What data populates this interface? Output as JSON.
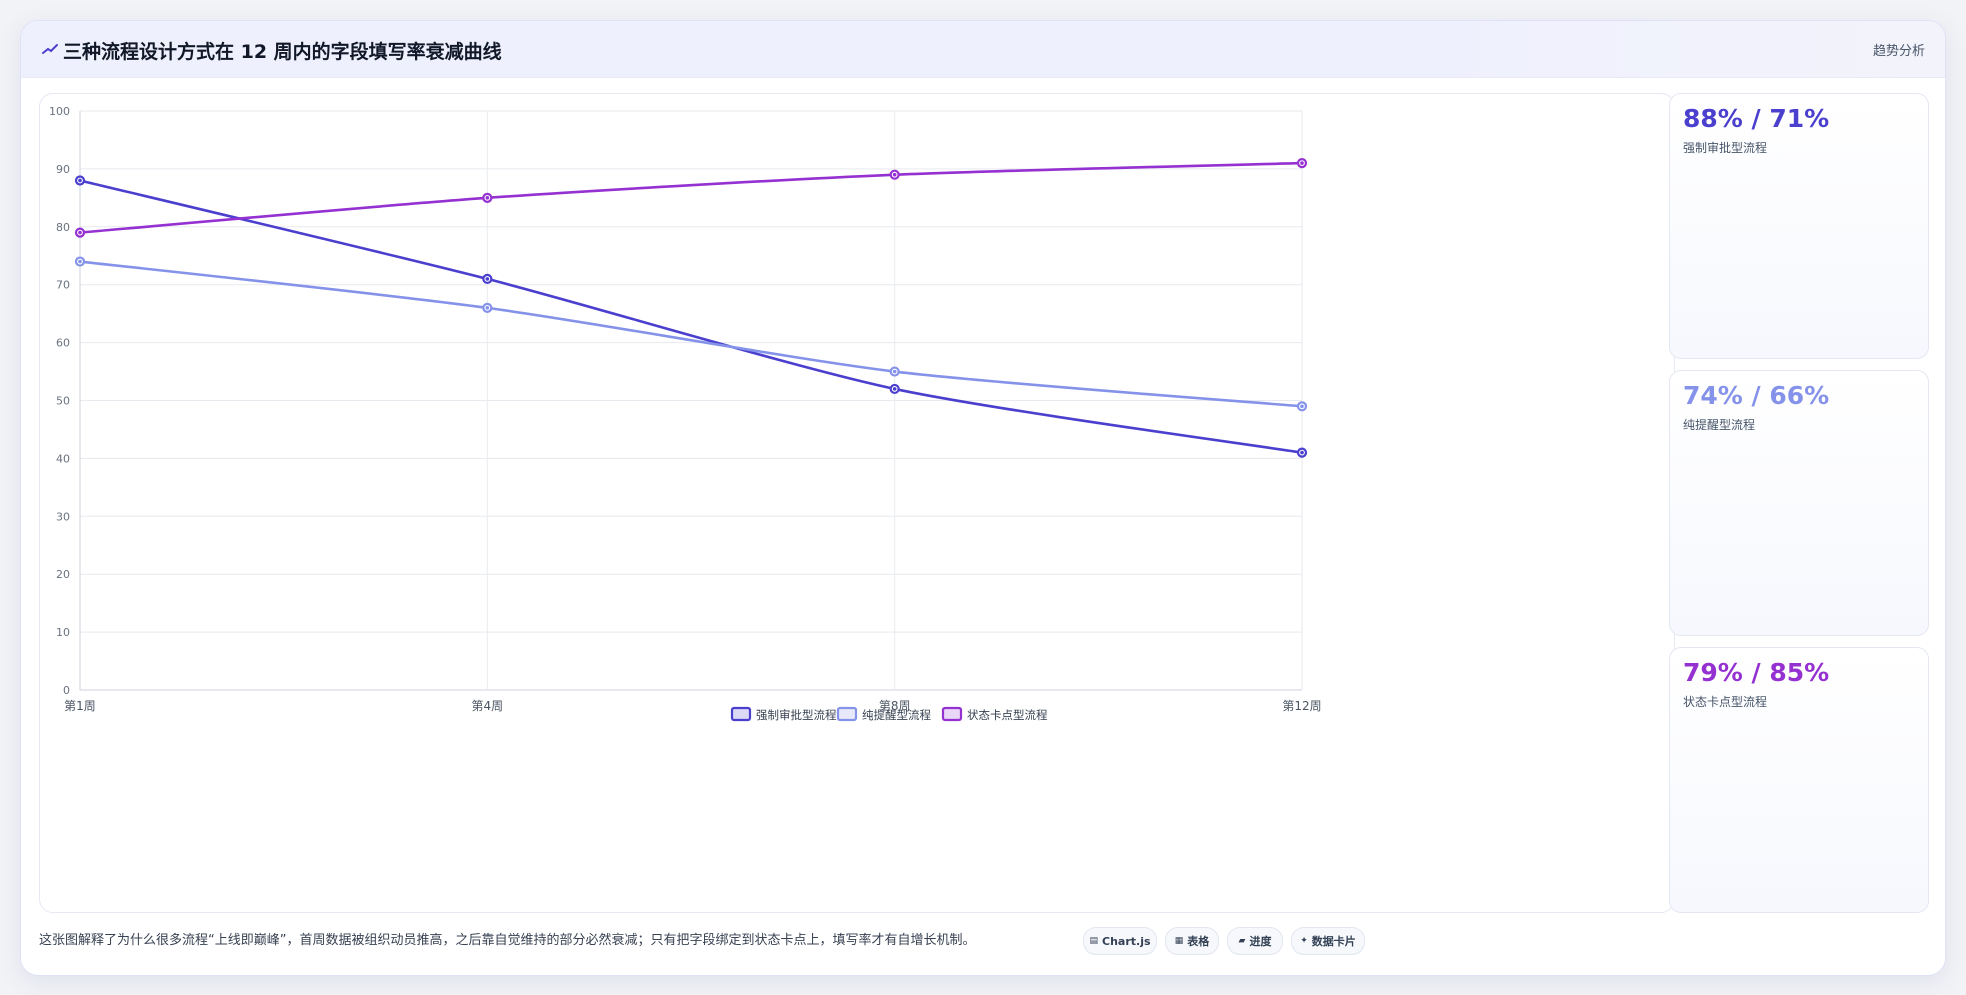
{
  "header": {
    "title": "三种流程设计方式在 12 周内的字段填写率衰减曲线",
    "tag": "趋势分析"
  },
  "chart_data": {
    "type": "line",
    "categories": [
      "第1周",
      "第4周",
      "第8周",
      "第12周"
    ],
    "ylim": [
      0,
      100
    ],
    "yticks": [
      0,
      10,
      20,
      30,
      40,
      50,
      60,
      70,
      80,
      90,
      100
    ],
    "grid": true,
    "legend_position": "bottom-center",
    "series": [
      {
        "name": "强制审批型流程",
        "values": [
          88,
          71,
          52,
          41
        ],
        "color": "#4b3fce"
      },
      {
        "name": "纯提醒型流程",
        "values": [
          74,
          66,
          55,
          49
        ],
        "color": "#8592e9"
      },
      {
        "name": "状态卡点型流程",
        "values": [
          79,
          85,
          89,
          91
        ],
        "color": "#9431d0"
      }
    ]
  },
  "side_cards": [
    {
      "value": "88% / 71%",
      "label": "强制审批型流程",
      "color": "#4b3fce"
    },
    {
      "value": "74% / 66%",
      "label": "纯提醒型流程",
      "color": "#8592e9"
    },
    {
      "value": "79% / 85%",
      "label": "状态卡点型流程",
      "color": "#9431d0"
    }
  ],
  "footnote": "这张图解释了为什么很多流程“上线即巅峰”，首周数据被组织动员推高，之后靠自觉维持的部分必然衰减；只有把字段绑定到状态卡点上，填写率才有自增长机制。",
  "chips": [
    {
      "icon": "▤",
      "label": "Chart.js"
    },
    {
      "icon": "▦",
      "label": "表格"
    },
    {
      "icon": "▰",
      "label": "进度"
    },
    {
      "icon": "✦",
      "label": "数据卡片"
    }
  ]
}
